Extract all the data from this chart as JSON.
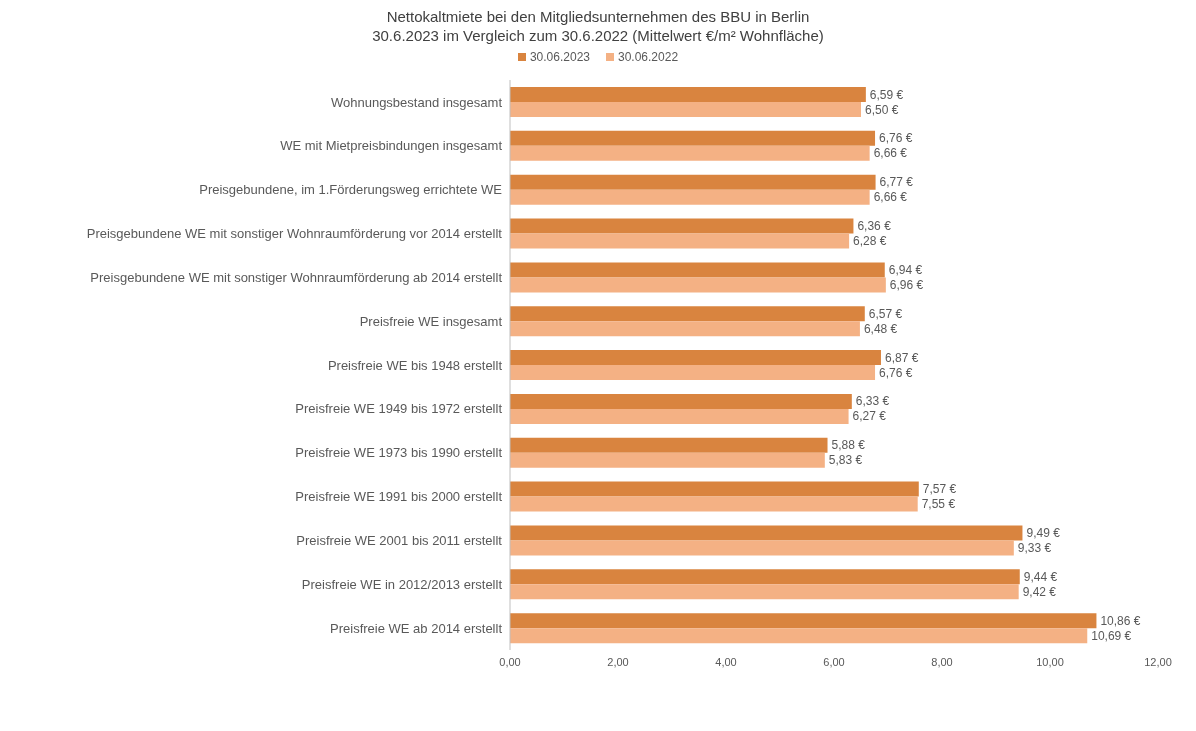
{
  "chart_data": {
    "type": "bar",
    "orientation": "horizontal",
    "title": "Nettokaltmiete bei den Mitgliedsunternehmen des BBU in Berlin",
    "subtitle": "30.6.2023 im Vergleich zum 30.6.2022 (Mittelwert €/m² Wohnfläche)",
    "categories": [
      "Wohnungsbestand insgesamt",
      "WE mit Mietpreisbindungen insgesamt",
      "Preisgebundene, im 1.Förderungsweg errichtete WE",
      "Preisgebundene WE mit sonstiger Wohnraumförderung vor 2014 erstellt",
      "Preisgebundene WE mit sonstiger Wohnraumförderung ab 2014 erstellt",
      "Preisfreie WE insgesamt",
      "Preisfreie WE bis 1948 erstellt",
      "Preisfreie WE 1949 bis 1972 erstellt",
      "Preisfreie WE 1973 bis 1990 erstellt",
      "Preisfreie WE 1991 bis 2000 erstellt",
      "Preisfreie WE 2001 bis 2011 erstellt",
      "Preisfreie WE  in 2012/2013 erstellt",
      "Preisfreie WE  ab 2014 erstellt"
    ],
    "series": [
      {
        "name": "30.06.2023",
        "color": "#d9843f",
        "values": [
          6.59,
          6.76,
          6.77,
          6.36,
          6.94,
          6.57,
          6.87,
          6.33,
          5.88,
          7.57,
          9.49,
          9.44,
          10.86
        ],
        "value_labels": [
          "6,59 €",
          "6,76 €",
          "6,77 €",
          "6,36 €",
          "6,94 €",
          "6,57 €",
          "6,87 €",
          "6,33 €",
          "5,88 €",
          "7,57 €",
          "9,49 €",
          "9,44 €",
          "10,86 €"
        ]
      },
      {
        "name": "30.06.2022",
        "color": "#f4b184",
        "values": [
          6.5,
          6.66,
          6.66,
          6.28,
          6.96,
          6.48,
          6.76,
          6.27,
          5.83,
          7.55,
          9.33,
          9.42,
          10.69
        ],
        "value_labels": [
          "6,50 €",
          "6,66 €",
          "6,66 €",
          "6,28 €",
          "6,96 €",
          "6,48 €",
          "6,76 €",
          "6,27 €",
          "5,83 €",
          "7,55 €",
          "9,33 €",
          "9,42 €",
          "10,69 €"
        ]
      }
    ],
    "xlim": [
      0,
      12
    ],
    "xticks": [
      {
        "value": 0,
        "label": "0,00"
      },
      {
        "value": 2,
        "label": "2,00"
      },
      {
        "value": 4,
        "label": "4,00"
      },
      {
        "value": 6,
        "label": "6,00"
      },
      {
        "value": 8,
        "label": "8,00"
      },
      {
        "value": 10,
        "label": "10,00"
      },
      {
        "value": 12,
        "label": "12,00"
      }
    ],
    "legend": "top",
    "grid": false
  }
}
